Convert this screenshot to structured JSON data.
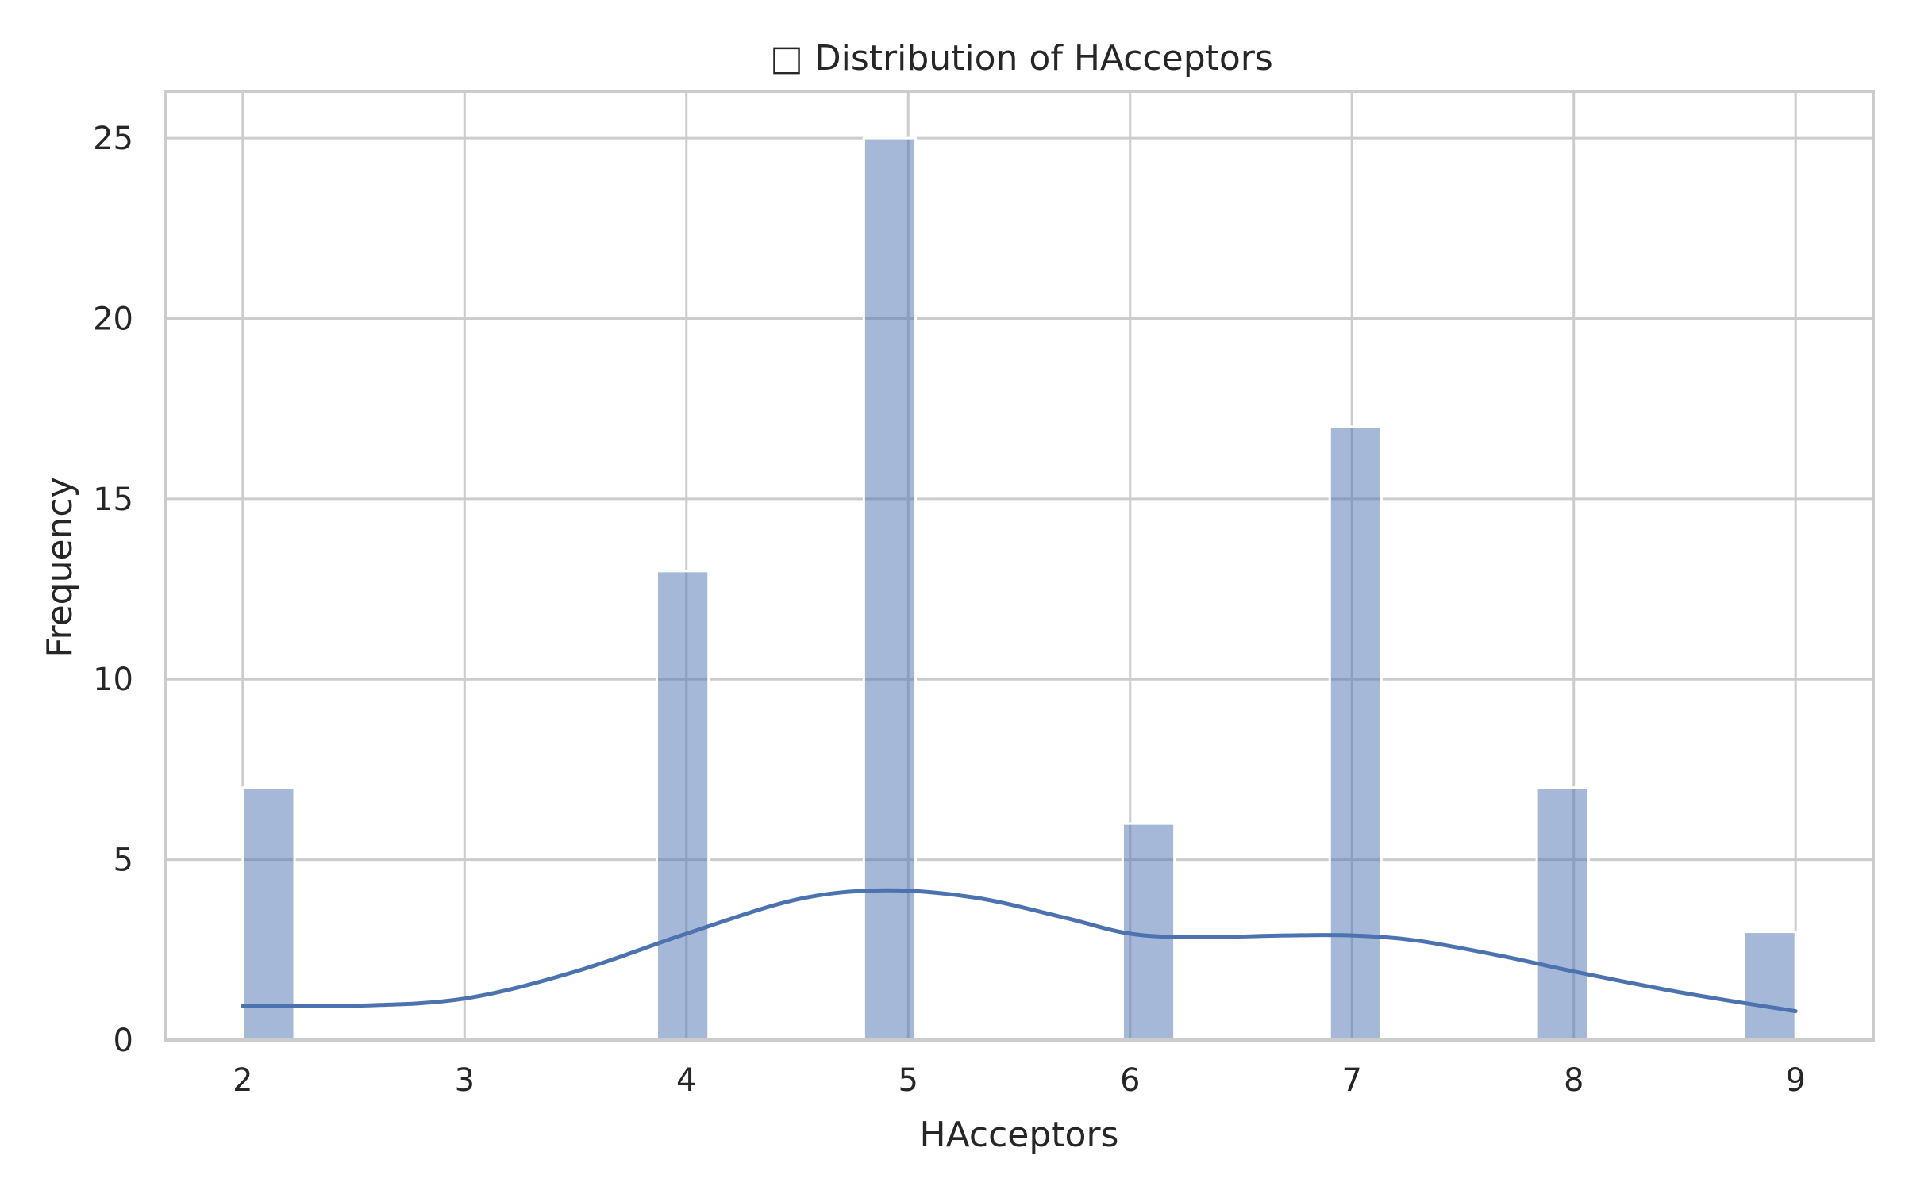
{
  "chart_data": {
    "type": "bar",
    "title": "□ Distribution of HAcceptors",
    "xlabel": "HAcceptors",
    "ylabel": "Frequency",
    "xlim": [
      1.65,
      9.35
    ],
    "ylim": [
      0,
      26.3
    ],
    "x_ticks": [
      2,
      3,
      4,
      5,
      6,
      7,
      8,
      9
    ],
    "y_ticks": [
      0,
      5,
      10,
      15,
      20,
      25
    ],
    "grid": true,
    "bin_width": 0.2333,
    "bins": [
      {
        "x0": 2.0,
        "x1": 2.2333,
        "value": 7
      },
      {
        "x0": 3.8667,
        "x1": 4.1,
        "value": 13
      },
      {
        "x0": 4.8,
        "x1": 5.0333,
        "value": 25
      },
      {
        "x0": 5.9667,
        "x1": 6.2,
        "value": 6
      },
      {
        "x0": 6.9,
        "x1": 7.1333,
        "value": 17
      },
      {
        "x0": 7.8333,
        "x1": 8.0667,
        "value": 7
      },
      {
        "x0": 8.7667,
        "x1": 9.0,
        "value": 3
      }
    ],
    "kde": {
      "x": [
        2.0,
        2.5,
        3.0,
        3.5,
        4.0,
        4.5,
        4.9,
        5.3,
        5.7,
        6.0,
        6.3,
        6.7,
        7.0,
        7.3,
        7.7,
        8.0,
        8.5,
        9.0
      ],
      "y": [
        0.95,
        0.95,
        1.15,
        1.9,
        2.95,
        3.9,
        4.15,
        3.95,
        3.4,
        2.95,
        2.85,
        2.9,
        2.9,
        2.75,
        2.3,
        1.9,
        1.3,
        0.8
      ]
    },
    "colors": {
      "bar": "#4c72b0",
      "line": "#4c72b0",
      "grid": "#cccccc"
    }
  }
}
